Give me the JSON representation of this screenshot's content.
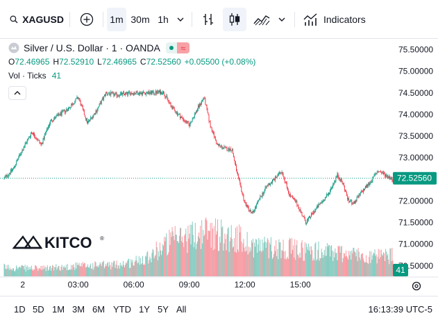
{
  "toolbar": {
    "symbol": "XAGUSD",
    "intervals": [
      "1m",
      "30m",
      "1h"
    ],
    "active_interval": "1m",
    "indicators_label": "Indicators"
  },
  "legend": {
    "title": "Silver / U.S. Dollar · 1 · OANDA",
    "ohlc": {
      "o_label": "O",
      "o": "72.46965",
      "h_label": "H",
      "h": "72.52910",
      "l_label": "L",
      "l": "72.46965",
      "c_label": "C",
      "c": "72.52560",
      "change": "+0.05500 (+0.08%)"
    },
    "volume_label": "Vol · Ticks",
    "volume_value": "41"
  },
  "watermark": {
    "text": "KITCO"
  },
  "price_axis": {
    "ticks": [
      "75.50000",
      "75.00000",
      "74.50000",
      "74.00000",
      "73.50000",
      "73.00000",
      "72.00000",
      "71.50000",
      "71.00000",
      "70.50000"
    ],
    "last_price": "72.52560",
    "last_volume": "41"
  },
  "time_axis": {
    "ticks": [
      "2",
      "03:00",
      "06:00",
      "09:00",
      "12:00",
      "15:00"
    ]
  },
  "bottombar": {
    "ranges": [
      "1D",
      "5D",
      "1M",
      "3M",
      "6M",
      "YTD",
      "1Y",
      "5Y",
      "All"
    ],
    "clock": "16:13:39 UTC-5"
  },
  "colors": {
    "up": "#089981",
    "down": "#f23645",
    "last_price_bg": "#089981",
    "accent_badge": "#f7a1a6"
  },
  "chart_data": {
    "type": "candlestick",
    "symbol": "XAGUSD",
    "interval": "1m",
    "ylim": [
      70.45,
      75.62
    ],
    "x_ticks": [
      "2",
      "03:00",
      "06:00",
      "09:00",
      "12:00",
      "15:00"
    ],
    "price_path": [
      [
        0,
        72.52
      ],
      [
        0.5,
        72.75
      ],
      [
        1.0,
        73.2
      ],
      [
        1.5,
        73.6
      ],
      [
        2.0,
        73.3
      ],
      [
        2.5,
        73.85
      ],
      [
        3.0,
        74.0
      ],
      [
        3.5,
        74.15
      ],
      [
        4.0,
        74.4
      ],
      [
        4.5,
        73.8
      ],
      [
        5.0,
        74.1
      ],
      [
        5.5,
        74.5
      ],
      [
        6.0,
        74.45
      ],
      [
        7.0,
        74.5
      ],
      [
        8.0,
        74.5
      ],
      [
        8.6,
        74.52
      ],
      [
        9.0,
        74.2
      ],
      [
        9.3,
        74.05
      ],
      [
        10.0,
        73.75
      ],
      [
        10.4,
        74.1
      ],
      [
        10.8,
        74.4
      ],
      [
        11.1,
        73.8
      ],
      [
        11.5,
        73.3
      ],
      [
        12.0,
        73.2
      ],
      [
        12.3,
        73.2
      ],
      [
        12.6,
        72.6
      ],
      [
        13.0,
        71.95
      ],
      [
        13.4,
        71.7
      ],
      [
        13.8,
        72.05
      ],
      [
        14.2,
        72.35
      ],
      [
        14.6,
        72.5
      ],
      [
        15.0,
        72.7
      ],
      [
        15.4,
        72.15
      ],
      [
        15.8,
        71.95
      ],
      [
        16.3,
        71.5
      ],
      [
        16.9,
        71.85
      ],
      [
        17.5,
        72.15
      ],
      [
        18.0,
        72.6
      ],
      [
        18.3,
        72.4
      ],
      [
        18.6,
        72.0
      ],
      [
        18.9,
        71.95
      ],
      [
        19.3,
        72.2
      ],
      [
        19.8,
        72.45
      ],
      [
        20.2,
        72.7
      ],
      [
        20.6,
        72.6
      ],
      [
        21.0,
        72.5
      ]
    ],
    "last": 72.5256,
    "volume": {
      "last": 41,
      "profile": [
        [
          0,
          14
        ],
        [
          2,
          12
        ],
        [
          4,
          16
        ],
        [
          6,
          18
        ],
        [
          7,
          22
        ],
        [
          8.0,
          35
        ],
        [
          9.0,
          55
        ],
        [
          10.0,
          62
        ],
        [
          11.0,
          70
        ],
        [
          12.5,
          60
        ],
        [
          13.5,
          48
        ],
        [
          15.0,
          44
        ],
        [
          16.5,
          40
        ],
        [
          17.5,
          38
        ],
        [
          18.5,
          36
        ],
        [
          20.0,
          30
        ],
        [
          21.0,
          32
        ]
      ]
    }
  }
}
